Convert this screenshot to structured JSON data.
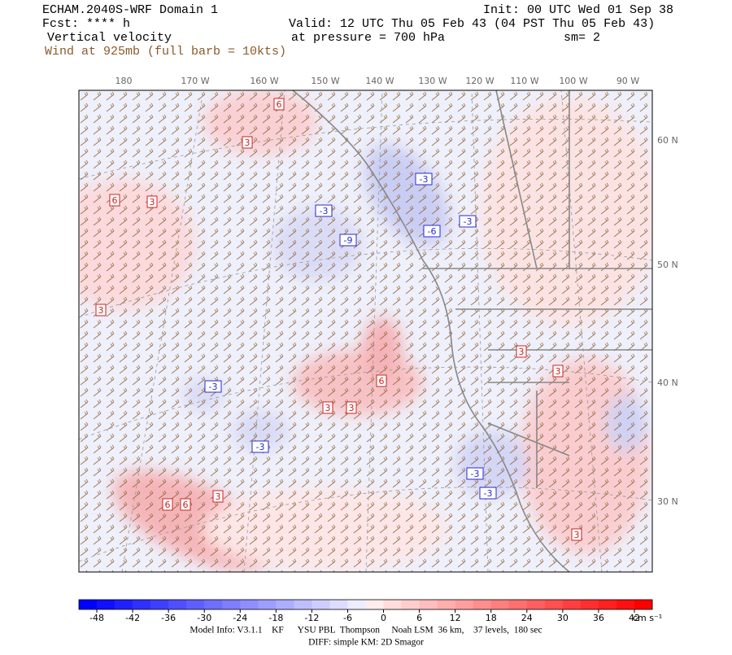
{
  "header": {
    "model": "ECHAM.2040S-WRF Domain 1",
    "init": "Init: 00 UTC Wed 01 Sep 38",
    "fcst": "Fcst: **** h",
    "valid": "Valid: 12 UTC Thu 05 Feb 43 (04 PST Thu 05 Feb 43)",
    "field": "Vertical velocity",
    "pressure": "at pressure =  700 hPa",
    "smoothing": "sm= 2",
    "wind": "Wind at 925mb (full barb = 10kts)"
  },
  "longitudes": [
    "180",
    "170 W",
    "160 W",
    "150 W",
    "140 W",
    "130 W",
    "120 W",
    "110 W",
    "100 W",
    "90 W"
  ],
  "latitudes": [
    "60 N",
    "50 N",
    "40 N",
    "30 N"
  ],
  "contour_labels": [
    "6",
    "3",
    "6",
    "3",
    "3",
    "-3",
    "-3",
    "-3",
    "-6",
    "-9",
    "3",
    "3",
    "6",
    "3",
    "3",
    "-3",
    "-3",
    "-3",
    "-3",
    "3",
    "6",
    "6",
    "3"
  ],
  "colorbar": {
    "ticks": [
      -48,
      -42,
      -36,
      -30,
      -24,
      -18,
      -12,
      -6,
      0,
      6,
      12,
      18,
      24,
      30,
      36,
      42
    ],
    "units": "cm s⁻¹"
  },
  "footer": {
    "model_info": "Model Info: V3.1.1    KF      YSU PBL  Thompson     Noah LSM  36 km,    37 levels,  180 sec",
    "diff": "DIFF: simple KM: 2D Smagor"
  }
}
